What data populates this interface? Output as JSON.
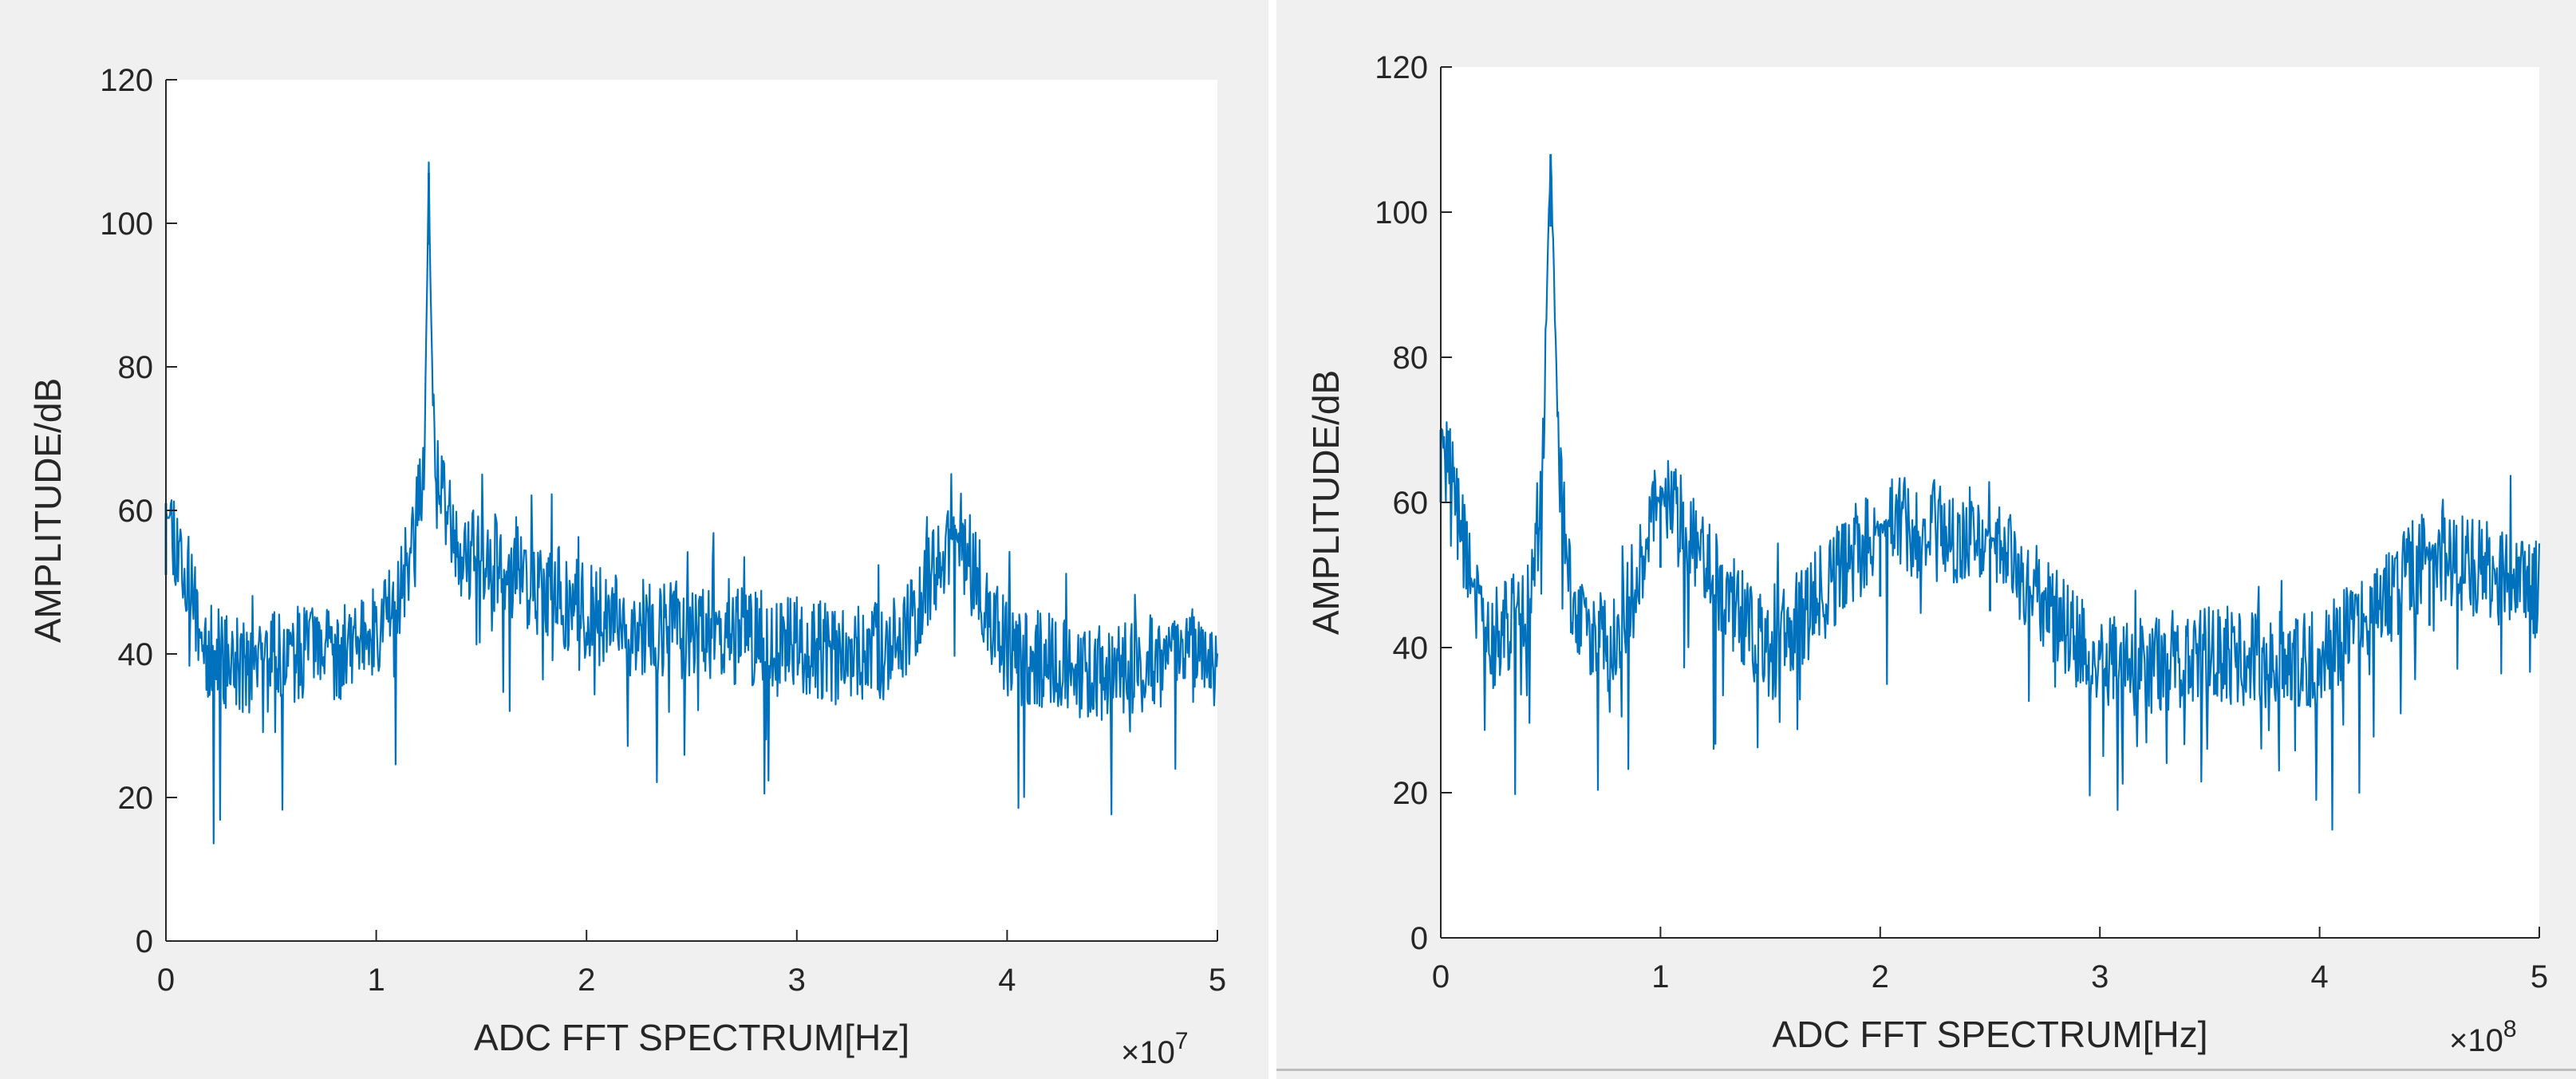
{
  "chart_data": [
    {
      "type": "line",
      "title": "",
      "xlabel": "ADC FFT SPECTRUM[Hz]",
      "ylabel": "AMPLITUDE/dB",
      "x_exponent_label": "×10",
      "x_exponent": "7",
      "xlim": [
        0,
        50000000
      ],
      "ylim": [
        0,
        120
      ],
      "x_ticks": [
        0,
        10000000,
        20000000,
        30000000,
        40000000,
        50000000
      ],
      "x_tick_labels": [
        "0",
        "1",
        "2",
        "3",
        "4",
        "5"
      ],
      "y_ticks": [
        0,
        20,
        40,
        60,
        80,
        100,
        120
      ],
      "y_tick_labels": [
        "0",
        "20",
        "40",
        "60",
        "80",
        "100",
        "120"
      ],
      "grid": false,
      "line_color": "#0072bd",
      "noise_floor_db": 40,
      "peaks": [
        {
          "x": 12500000,
          "y": 107
        },
        {
          "x": 0,
          "y": 61
        },
        {
          "x": 37500000,
          "y": 58
        }
      ],
      "series": [
        {
          "x": [
            0,
            2000000,
            4000000,
            6000000,
            8000000,
            10000000,
            11000000,
            11800000,
            12300000,
            12500000,
            12700000,
            13200000,
            14000000,
            15000000,
            16000000,
            18000000,
            20000000,
            22000000,
            25000000,
            28000000,
            30000000,
            33000000,
            35000000,
            37500000,
            40000000,
            43000000,
            45000000,
            48000000,
            50000000
          ],
          "values": [
            61,
            40,
            38,
            40,
            39,
            44,
            49,
            55,
            68,
            107,
            72,
            60,
            55,
            53,
            52,
            49,
            46,
            44,
            43,
            42,
            41,
            40,
            41,
            58,
            40,
            38,
            37,
            40,
            39
          ]
        }
      ]
    },
    {
      "type": "line",
      "title": "",
      "xlabel": "ADC FFT SPECTRUM[Hz]",
      "ylabel": "AMPLITUDE/dB",
      "x_exponent_label": "×10",
      "x_exponent": "8",
      "xlim": [
        0,
        500000000
      ],
      "ylim": [
        0,
        120
      ],
      "x_ticks": [
        0,
        100000000,
        200000000,
        300000000,
        400000000,
        500000000
      ],
      "x_tick_labels": [
        "0",
        "1",
        "2",
        "3",
        "4",
        "5"
      ],
      "y_ticks": [
        0,
        20,
        40,
        60,
        80,
        100,
        120
      ],
      "y_tick_labels": [
        "0",
        "20",
        "40",
        "60",
        "80",
        "100",
        "120"
      ],
      "grid": false,
      "line_color": "#0072bd",
      "noise_floor_db": 39,
      "peaks": [
        {
          "x": 50000000,
          "y": 108
        },
        {
          "x": 0,
          "y": 70
        },
        {
          "x": 100000000,
          "y": 61
        },
        {
          "x": 200000000,
          "y": 57
        },
        {
          "x": 250000000,
          "y": 55
        },
        {
          "x": 450000000,
          "y": 53
        }
      ],
      "series": [
        {
          "x": [
            0,
            20000000,
            40000000,
            46000000,
            50000000,
            54000000,
            60000000,
            80000000,
            100000000,
            150000000,
            200000000,
            250000000,
            300000000,
            350000000,
            400000000,
            450000000,
            500000000
          ],
          "values": [
            70,
            40,
            46,
            62,
            108,
            63,
            45,
            40,
            61,
            39,
            57,
            55,
            37,
            39,
            38,
            53,
            48
          ]
        }
      ]
    }
  ]
}
